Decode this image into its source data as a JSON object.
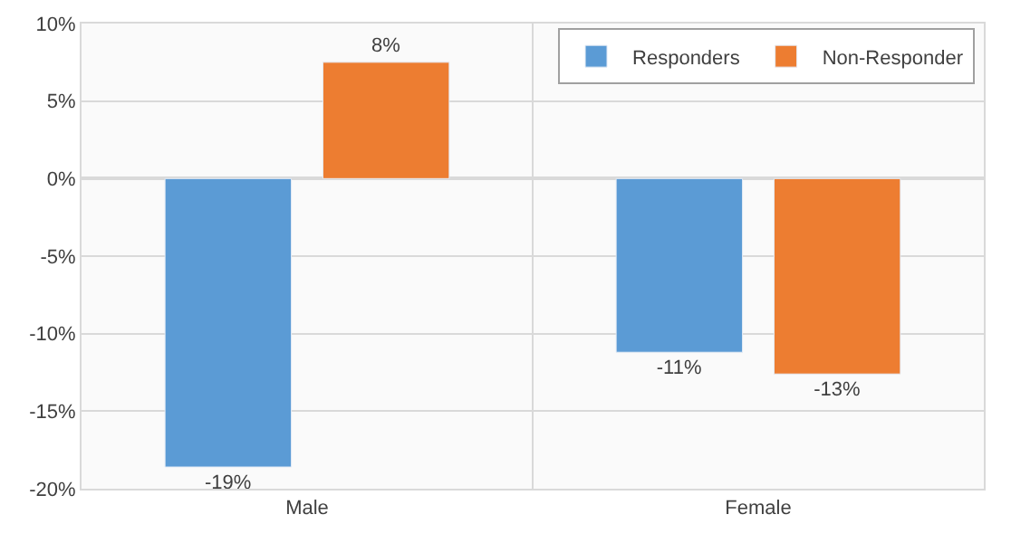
{
  "chart_data": {
    "type": "bar",
    "categories": [
      "Male",
      "Female"
    ],
    "series": [
      {
        "name": "Responders",
        "color": "#5b9bd5",
        "values": [
          -18.6,
          -11.2
        ],
        "value_labels": [
          "-19%",
          "-11%"
        ]
      },
      {
        "name": "Non-Responder",
        "color": "#ed7d31",
        "values": [
          7.5,
          -12.6
        ],
        "value_labels": [
          "8%",
          "-13%"
        ]
      }
    ],
    "ylim": [
      -20,
      10
    ],
    "yticks": [
      {
        "value": -20,
        "label": "-20%"
      },
      {
        "value": -15,
        "label": "-15%"
      },
      {
        "value": -10,
        "label": "-10%"
      },
      {
        "value": -5,
        "label": "-5%"
      },
      {
        "value": 0,
        "label": "0%"
      },
      {
        "value": 5,
        "label": "5%"
      },
      {
        "value": 10,
        "label": "10%"
      }
    ],
    "grid": true,
    "legend": "top right"
  }
}
